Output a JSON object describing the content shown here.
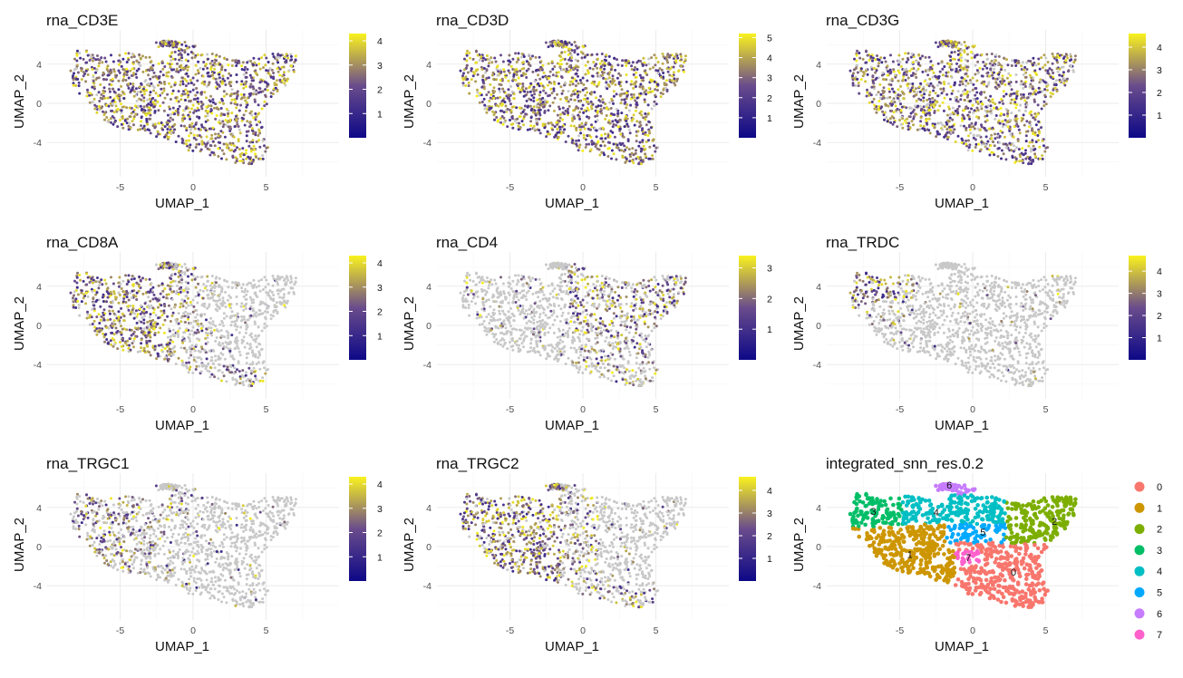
{
  "chart_data": [
    {
      "type": "scatter",
      "feature": "rna_CD3E",
      "title": "rna_CD3E",
      "xlabel": "UMAP_1",
      "ylabel": "UMAP_2",
      "xlim": [
        -10,
        10
      ],
      "ylim": [
        -7.5,
        7.5
      ],
      "xticks": [
        "-5",
        "0",
        "5"
      ],
      "yticks": [
        "-4",
        "0",
        "4"
      ],
      "colorbar": {
        "min": 0,
        "max": 4.3,
        "ticks": [
          "1",
          "2",
          "3",
          "4"
        ],
        "low": "#0d0887",
        "mid": "#6a4c8c",
        "high": "#f9f21e"
      },
      "expression": "high-broad",
      "grid": true,
      "legend": "right"
    },
    {
      "type": "scatter",
      "feature": "rna_CD3D",
      "title": "rna_CD3D",
      "xlabel": "UMAP_1",
      "ylabel": "UMAP_2",
      "xlim": [
        -10,
        10
      ],
      "ylim": [
        -7.5,
        7.5
      ],
      "xticks": [
        "-5",
        "0",
        "5"
      ],
      "yticks": [
        "-4",
        "0",
        "4"
      ],
      "colorbar": {
        "min": 0,
        "max": 5.2,
        "ticks": [
          "1",
          "2",
          "3",
          "4",
          "5"
        ],
        "low": "#0d0887",
        "mid": "#6a4c8c",
        "high": "#f9f21e"
      },
      "expression": "high-broad",
      "grid": true,
      "legend": "right"
    },
    {
      "type": "scatter",
      "feature": "rna_CD3G",
      "title": "rna_CD3G",
      "xlabel": "UMAP_1",
      "ylabel": "UMAP_2",
      "xlim": [
        -10,
        10
      ],
      "ylim": [
        -7.5,
        7.5
      ],
      "xticks": [
        "-5",
        "0",
        "5"
      ],
      "yticks": [
        "-4",
        "0",
        "4"
      ],
      "colorbar": {
        "min": 0,
        "max": 4.6,
        "ticks": [
          "1",
          "2",
          "3",
          "4"
        ],
        "low": "#0d0887",
        "mid": "#6a4c8c",
        "high": "#f9f21e"
      },
      "expression": "medium-broad",
      "grid": true,
      "legend": "right"
    },
    {
      "type": "scatter",
      "feature": "rna_CD8A",
      "title": "rna_CD8A",
      "xlabel": "UMAP_1",
      "ylabel": "UMAP_2",
      "xlim": [
        -10,
        10
      ],
      "ylim": [
        -7.5,
        7.5
      ],
      "xticks": [
        "-5",
        "0",
        "5"
      ],
      "yticks": [
        "-4",
        "0",
        "4"
      ],
      "colorbar": {
        "min": 0,
        "max": 4.3,
        "ticks": [
          "1",
          "2",
          "3",
          "4"
        ],
        "low": "#0d0887",
        "mid": "#6a4c8c",
        "high": "#f9f21e"
      },
      "expression": "left-region",
      "grid": true,
      "legend": "right"
    },
    {
      "type": "scatter",
      "feature": "rna_CD4",
      "title": "rna_CD4",
      "xlabel": "UMAP_1",
      "ylabel": "UMAP_2",
      "xlim": [
        -10,
        10
      ],
      "ylim": [
        -7.5,
        7.5
      ],
      "xticks": [
        "-5",
        "0",
        "5"
      ],
      "yticks": [
        "-4",
        "0",
        "4"
      ],
      "colorbar": {
        "min": 0,
        "max": 3.4,
        "ticks": [
          "1",
          "2",
          "3"
        ],
        "low": "#0d0887",
        "mid": "#6a4c8c",
        "high": "#f9f21e"
      },
      "expression": "right-region",
      "grid": true,
      "legend": "right"
    },
    {
      "type": "scatter",
      "feature": "rna_TRDC",
      "title": "rna_TRDC",
      "xlabel": "UMAP_1",
      "ylabel": "UMAP_2",
      "xlim": [
        -10,
        10
      ],
      "ylim": [
        -7.5,
        7.5
      ],
      "xticks": [
        "-5",
        "0",
        "5"
      ],
      "yticks": [
        "-4",
        "0",
        "4"
      ],
      "colorbar": {
        "min": 0,
        "max": 4.7,
        "ticks": [
          "1",
          "2",
          "3",
          "4"
        ],
        "low": "#0d0887",
        "mid": "#6a4c8c",
        "high": "#f9f21e"
      },
      "expression": "top-left-patch",
      "grid": true,
      "legend": "right"
    },
    {
      "type": "scatter",
      "feature": "rna_TRGC1",
      "title": "rna_TRGC1",
      "xlabel": "UMAP_1",
      "ylabel": "UMAP_2",
      "xlim": [
        -10,
        10
      ],
      "ylim": [
        -7.5,
        7.5
      ],
      "xticks": [
        "-5",
        "0",
        "5"
      ],
      "yticks": [
        "-4",
        "0",
        "4"
      ],
      "colorbar": {
        "min": 0,
        "max": 4.3,
        "ticks": [
          "1",
          "2",
          "3",
          "4"
        ],
        "low": "#0d0887",
        "mid": "#6a4c8c",
        "high": "#f9f21e"
      },
      "expression": "sparse-left",
      "grid": true,
      "legend": "right"
    },
    {
      "type": "scatter",
      "feature": "rna_TRGC2",
      "title": "rna_TRGC2",
      "xlabel": "UMAP_1",
      "ylabel": "UMAP_2",
      "xlim": [
        -10,
        10
      ],
      "ylim": [
        -7.5,
        7.5
      ],
      "xticks": [
        "-5",
        "0",
        "5"
      ],
      "yticks": [
        "-4",
        "0",
        "4"
      ],
      "colorbar": {
        "min": 0,
        "max": 4.6,
        "ticks": [
          "1",
          "2",
          "3",
          "4"
        ],
        "low": "#0d0887",
        "mid": "#6a4c8c",
        "high": "#f9f21e"
      },
      "expression": "left-region",
      "grid": true,
      "legend": "right"
    },
    {
      "type": "scatter",
      "feature": "integrated_snn_res.0.2",
      "title": "integrated_snn_res.0.2",
      "xlabel": "UMAP_1",
      "ylabel": "UMAP_2",
      "xlim": [
        -10,
        10
      ],
      "ylim": [
        -7.5,
        7.5
      ],
      "xticks": [
        "-5",
        "0",
        "5"
      ],
      "yticks": [
        "-4",
        "0",
        "4"
      ],
      "grid": true,
      "legend": "right",
      "clusters": [
        {
          "label": "0",
          "color": "#f8766d",
          "center": [
            2.8,
            -2.6
          ]
        },
        {
          "label": "1",
          "color": "#cd9600",
          "center": [
            -4.3,
            -0.8
          ]
        },
        {
          "label": "2",
          "color": "#7cae00",
          "center": [
            5.6,
            2.6
          ]
        },
        {
          "label": "3",
          "color": "#00be67",
          "center": [
            -6.8,
            3.6
          ]
        },
        {
          "label": "4",
          "color": "#00bfc4",
          "center": [
            -2.5,
            3.5
          ]
        },
        {
          "label": "5",
          "color": "#00a9ff",
          "center": [
            0.7,
            1.5
          ]
        },
        {
          "label": "6",
          "color": "#c77cff",
          "center": [
            -1.6,
            6.3
          ]
        },
        {
          "label": "7",
          "color": "#ff61cc",
          "center": [
            -0.3,
            -1.1
          ]
        }
      ]
    }
  ]
}
